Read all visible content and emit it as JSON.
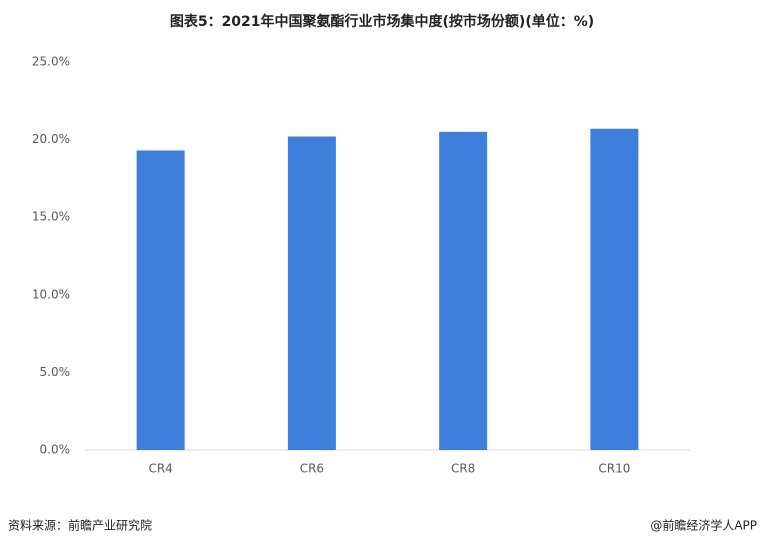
{
  "chart_data": {
    "type": "bar",
    "title": "图表5：2021年中国聚氨酯行业市场集中度(按市场份额)(单位：%)",
    "categories": [
      "CR4",
      "CR6",
      "CR8",
      "CR10"
    ],
    "values": [
      19.3,
      20.2,
      20.5,
      20.7
    ],
    "color": "#3f7fdc",
    "ylim": [
      0,
      25
    ],
    "yticks": [
      {
        "value": 0,
        "label": "0.0%"
      },
      {
        "value": 5,
        "label": "5.0%"
      },
      {
        "value": 10,
        "label": "10.0%"
      },
      {
        "value": 15,
        "label": "15.0%"
      },
      {
        "value": 20,
        "label": "20.0%"
      },
      {
        "value": 25,
        "label": "25.0%"
      }
    ],
    "grid": false,
    "source": "资料来源：前瞻产业研究院",
    "credit": "@前瞻经济学人APP"
  }
}
